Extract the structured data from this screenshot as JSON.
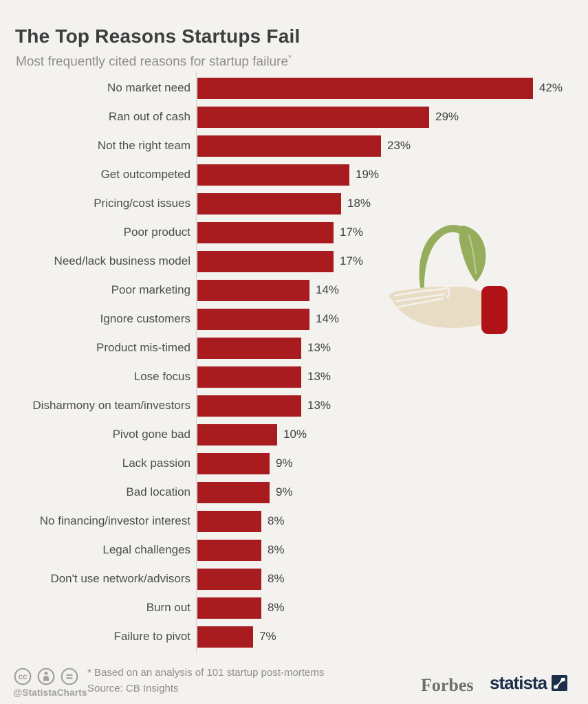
{
  "header": {
    "title": "The Top Reasons Startups Fail",
    "subtitle": "Most frequently cited reasons for startup failure",
    "subtitle_marker": "*"
  },
  "chart_data": {
    "type": "bar",
    "orientation": "horizontal",
    "title": "The Top Reasons Startups Fail",
    "subtitle": "Most frequently cited reasons for startup failure*",
    "categories": [
      "No market need",
      "Ran out of cash",
      "Not the right team",
      "Get outcompeted",
      "Pricing/cost issues",
      "Poor product",
      "Need/lack business model",
      "Poor marketing",
      "Ignore customers",
      "Product mis-timed",
      "Lose focus",
      "Disharmony on team/investors",
      "Pivot gone bad",
      "Lack passion",
      "Bad location",
      "No financing/investor interest",
      "Legal challenges",
      "Don't use network/advisors",
      "Burn out",
      "Failure to pivot"
    ],
    "values": [
      42,
      29,
      23,
      19,
      18,
      17,
      17,
      14,
      14,
      13,
      13,
      13,
      10,
      9,
      9,
      8,
      8,
      8,
      8,
      7
    ],
    "value_suffix": "%",
    "xlim": [
      0,
      45
    ],
    "grid": false,
    "legend": false,
    "bar_color": "#a81c20",
    "axis_color": "#d4d2cf",
    "value_label_position": "right-of-bar"
  },
  "illustration": {
    "description": "open hand offering a green seedling sprout",
    "leaf_color": "#95ad5d",
    "leaf_vein_color": "#b9cb92",
    "hand_color": "#e9dcc4",
    "sleeve_color": "#b01217"
  },
  "footer": {
    "license_icons": [
      "cc",
      "attribution",
      "equals"
    ],
    "handle": "@StatistaCharts",
    "note": "* Based on an analysis of 101 startup post-mortems",
    "source": "Source: CB Insights",
    "brand_forbes": "Forbes",
    "brand_statista": "statista"
  },
  "colors": {
    "background": "#f4f2ef",
    "title_text": "#3d3d3d",
    "subtitle_text": "#8e8d8b",
    "category_text": "#4d4d4d",
    "value_text": "#3f3f3f",
    "footer_text": "#8e8d8b",
    "cc_icon_gray": "#a2a19f",
    "forbes_gray": "#6f6f6f",
    "statista_navy": "#1d2e4a"
  }
}
